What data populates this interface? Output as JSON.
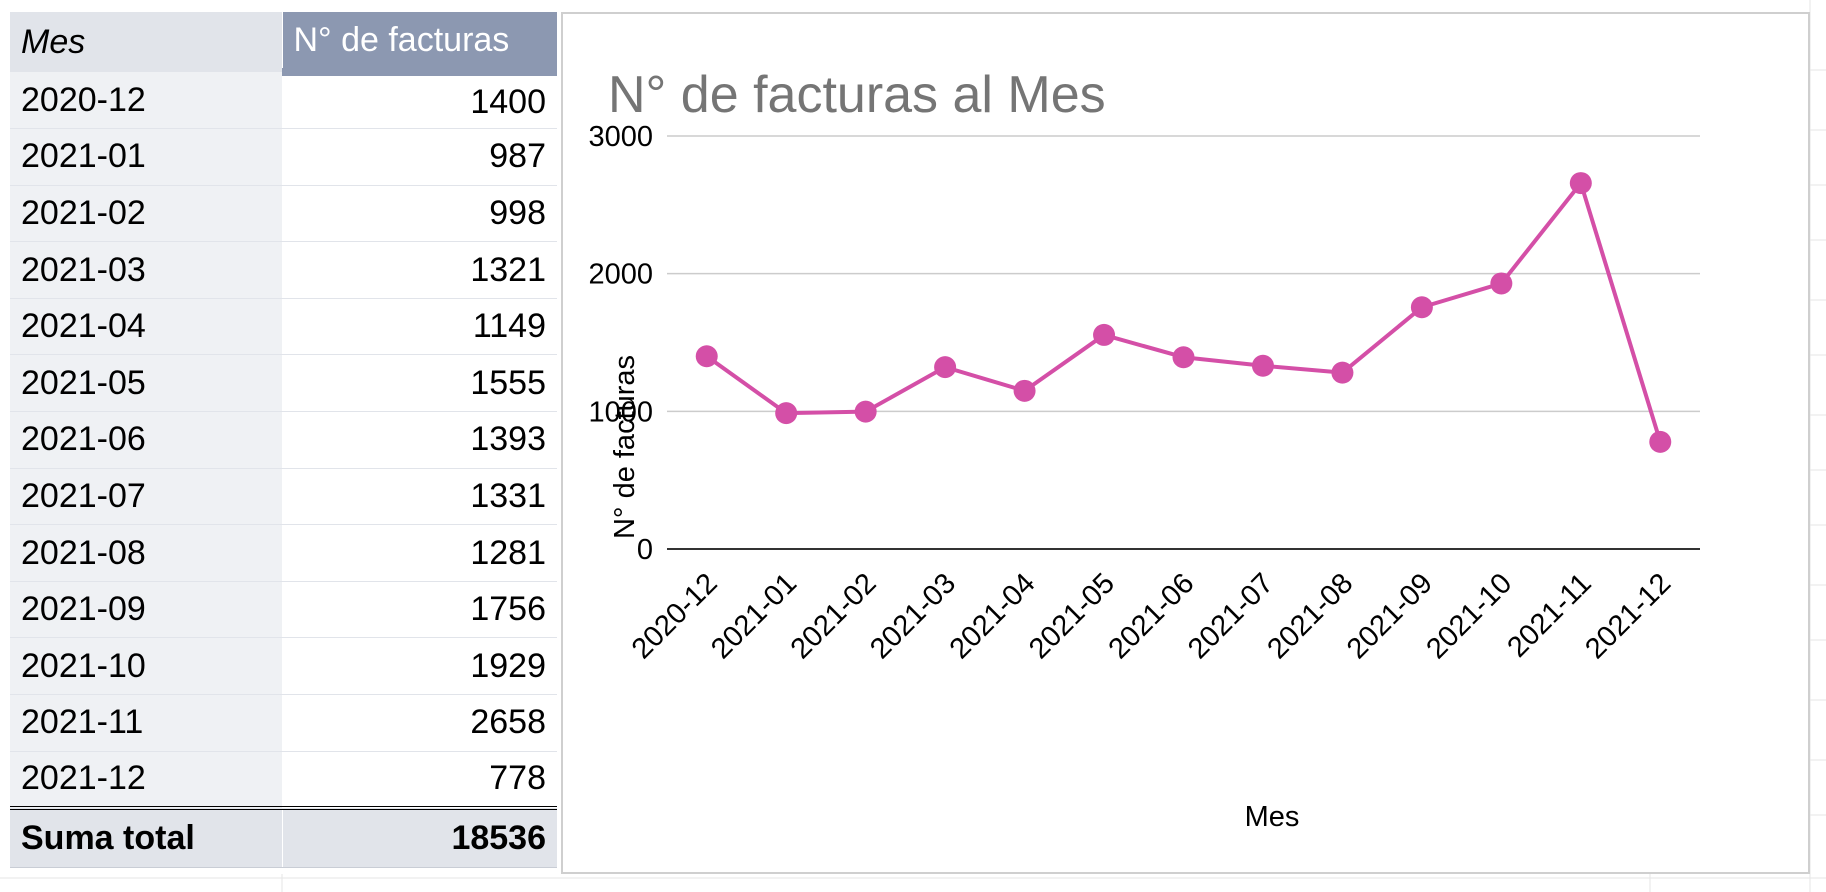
{
  "table": {
    "header": {
      "col1": "Mes",
      "col2": "N° de facturas"
    },
    "rows": [
      {
        "mes": "2020-12",
        "facturas": "1400"
      },
      {
        "mes": "2021-01",
        "facturas": "987"
      },
      {
        "mes": "2021-02",
        "facturas": "998"
      },
      {
        "mes": "2021-03",
        "facturas": "1321"
      },
      {
        "mes": "2021-04",
        "facturas": "1149"
      },
      {
        "mes": "2021-05",
        "facturas": "1555"
      },
      {
        "mes": "2021-06",
        "facturas": "1393"
      },
      {
        "mes": "2021-07",
        "facturas": "1331"
      },
      {
        "mes": "2021-08",
        "facturas": "1281"
      },
      {
        "mes": "2021-09",
        "facturas": "1756"
      },
      {
        "mes": "2021-10",
        "facturas": "1929"
      },
      {
        "mes": "2021-11",
        "facturas": "2658"
      },
      {
        "mes": "2021-12",
        "facturas": "778"
      }
    ],
    "total": {
      "label": "Suma total",
      "value": "18536"
    }
  },
  "chart_data": {
    "type": "line",
    "title": "N° de facturas al Mes",
    "xlabel": "Mes",
    "ylabel": "N° de facturas",
    "categories": [
      "2020-12",
      "2021-01",
      "2021-02",
      "2021-03",
      "2021-04",
      "2021-05",
      "2021-06",
      "2021-07",
      "2021-08",
      "2021-09",
      "2021-10",
      "2021-11",
      "2021-12"
    ],
    "series": [
      {
        "values": [
          1400,
          987,
          998,
          1321,
          1149,
          1555,
          1393,
          1331,
          1281,
          1756,
          1929,
          2658,
          778
        ],
        "color": "#d44fa7"
      }
    ],
    "ylim": [
      0,
      3000
    ],
    "yticks": [
      0,
      1000,
      2000,
      3000
    ],
    "grid": true,
    "legend": "none",
    "colors": {
      "line": "#d44fa7",
      "gridline": "#cccccc",
      "baseline": "#333333",
      "title": "#757575"
    }
  }
}
